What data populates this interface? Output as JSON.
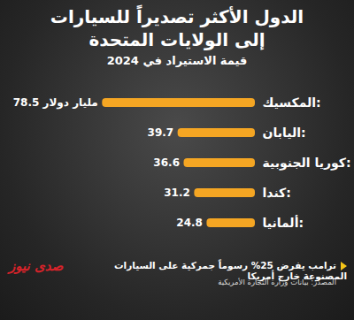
{
  "chart_data": {
    "type": "bar",
    "orientation": "horizontal",
    "title": "الدول الأكثر تصديراً للسيارات إلى الولايات المتحدة",
    "subtitle": "قيمة الاستيراد في 2024",
    "categories": [
      "المكسيك:",
      "اليابان:",
      "كوريا الجنوبية:",
      "كندا:",
      "ألمانيا:"
    ],
    "values": [
      78.5,
      39.7,
      36.6,
      31.2,
      24.8
    ],
    "value_labels": [
      "78.5 مليار دولار",
      "39.7",
      "36.6",
      "31.2",
      "24.8"
    ],
    "color": "#f5a623",
    "xlim": [
      0,
      80
    ],
    "grid": false,
    "data_labels": true,
    "tick_labels": "y",
    "annotations": [
      "ترامب يفرض 25% رسوماً جمركية على السيارات المصنوعة خارج أمريكا",
      "المصدر: بيانات وزارة التجارة الأمريكية",
      "صدى نيوز"
    ]
  }
}
